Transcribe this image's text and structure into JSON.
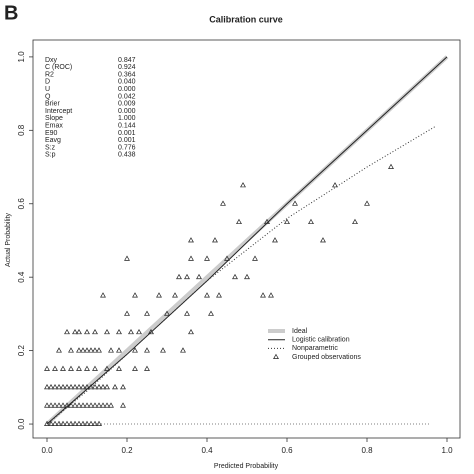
{
  "panel_label": "B",
  "chart_data": {
    "type": "line",
    "title": "Calibration curve",
    "x_label": "Predicted Probability",
    "y_label": "Actual Probability",
    "xlim": [
      -0.035,
      1.0325
    ],
    "ylim": [
      -0.038,
      1.046
    ],
    "xticks": [
      {
        "value": 0,
        "label": "0.0"
      },
      {
        "value": 0.2,
        "label": "0.2"
      },
      {
        "value": 0.4,
        "label": "0.4"
      },
      {
        "value": 0.6,
        "label": "0.6"
      },
      {
        "value": 0.8,
        "label": "0.8"
      },
      {
        "value": 1,
        "label": "1.0"
      }
    ],
    "yticks": [
      {
        "value": 0,
        "label": "0.0"
      },
      {
        "value": 0.2,
        "label": "0.2"
      },
      {
        "value": 0.4,
        "label": "0.4"
      },
      {
        "value": 0.6,
        "label": "0.6"
      },
      {
        "value": 0.8,
        "label": "0.8"
      },
      {
        "value": 1,
        "label": "1.0"
      }
    ],
    "stats": [
      [
        "Dxy",
        "0.847"
      ],
      [
        "C (ROC)",
        "0.924"
      ],
      [
        "R2",
        "0.364"
      ],
      [
        "D",
        "0.040"
      ],
      [
        "U",
        "0.000"
      ],
      [
        "Q",
        "0.042"
      ],
      [
        "Brier",
        "0.009"
      ],
      [
        "Intercept",
        "0.000"
      ],
      [
        "Slope",
        "1.000"
      ],
      [
        "Emax",
        "0.144"
      ],
      [
        "E90",
        "0.001"
      ],
      [
        "Eavg",
        "0.001"
      ],
      [
        "S:z",
        "0.776"
      ],
      [
        "S:p",
        "0.438"
      ]
    ],
    "series": [
      {
        "name": "Ideal",
        "color": "#cccccc",
        "style": "thick",
        "x": [
          0,
          1
        ],
        "values": [
          0,
          1
        ]
      },
      {
        "name": "Logistic calibration",
        "color": "#222222",
        "style": "solid",
        "x": [
          0,
          0.2,
          0.4,
          0.6,
          0.8,
          1
        ],
        "values": [
          0,
          0.19,
          0.39,
          0.6,
          0.8,
          1
        ]
      },
      {
        "name": "Nonparametric",
        "color": "#333333",
        "style": "dotted",
        "x": [
          0,
          0.1,
          0.2,
          0.4,
          0.6,
          0.8,
          0.97
        ],
        "values": [
          0,
          0.09,
          0.19,
          0.39,
          0.56,
          0.7,
          0.81
        ]
      },
      {
        "name": "Grouped observations",
        "color": "#222222",
        "style": "triangle",
        "x": [
          0,
          0.01,
          0.02,
          0.03,
          0.04,
          0.05,
          0.06,
          0.07,
          0.08,
          0.09,
          0.1,
          0.11,
          0.12,
          0.13,
          0,
          0.01,
          0.02,
          0.03,
          0.04,
          0.05,
          0.06,
          0.07,
          0.08,
          0.09,
          0.1,
          0.11,
          0.12,
          0.13,
          0.14,
          0.15,
          0.16,
          0.19,
          0,
          0.01,
          0.02,
          0.03,
          0.04,
          0.05,
          0.06,
          0.07,
          0.08,
          0.09,
          0.1,
          0.11,
          0.12,
          0.13,
          0.14,
          0.15,
          0.17,
          0.19,
          0,
          0.02,
          0.04,
          0.06,
          0.08,
          0.1,
          0.12,
          0.15,
          0.18,
          0.22,
          0.25,
          0.03,
          0.06,
          0.08,
          0.09,
          0.1,
          0.11,
          0.12,
          0.13,
          0.16,
          0.18,
          0.22,
          0.25,
          0.29,
          0.34,
          0.05,
          0.07,
          0.08,
          0.1,
          0.12,
          0.15,
          0.18,
          0.21,
          0.23,
          0.26,
          0.36,
          0.14,
          0.2,
          0.2,
          0.22,
          0.25,
          0.28,
          0.3,
          0.32,
          0.33,
          0.35,
          0.35,
          0.36,
          0.36,
          0.38,
          0.4,
          0.4,
          0.41,
          0.42,
          0.43,
          0.44,
          0.45,
          0.47,
          0.48,
          0.49,
          0.5,
          0.52,
          0.54,
          0.55,
          0.56,
          0.57,
          0.6,
          0.62,
          0.66,
          0.69,
          0.72,
          0.77,
          0.8,
          0.86
        ],
        "values": [
          0,
          0,
          0,
          0,
          0,
          0,
          0,
          0,
          0,
          0,
          0,
          0,
          0,
          0,
          0.05,
          0.05,
          0.05,
          0.05,
          0.05,
          0.05,
          0.05,
          0.05,
          0.05,
          0.05,
          0.05,
          0.05,
          0.05,
          0.05,
          0.05,
          0.05,
          0.05,
          0.05,
          0.1,
          0.1,
          0.1,
          0.1,
          0.1,
          0.1,
          0.1,
          0.1,
          0.1,
          0.1,
          0.1,
          0.1,
          0.1,
          0.1,
          0.1,
          0.1,
          0.1,
          0.1,
          0.15,
          0.15,
          0.15,
          0.15,
          0.15,
          0.15,
          0.15,
          0.15,
          0.15,
          0.15,
          0.15,
          0.2,
          0.2,
          0.2,
          0.2,
          0.2,
          0.2,
          0.2,
          0.2,
          0.2,
          0.2,
          0.2,
          0.2,
          0.2,
          0.2,
          0.25,
          0.25,
          0.25,
          0.25,
          0.25,
          0.25,
          0.25,
          0.25,
          0.25,
          0.25,
          0.25,
          0.35,
          0.45,
          0.3,
          0.35,
          0.3,
          0.35,
          0.3,
          0.35,
          0.4,
          0.3,
          0.4,
          0.45,
          0.5,
          0.4,
          0.35,
          0.45,
          0.3,
          0.5,
          0.35,
          0.6,
          0.45,
          0.4,
          0.55,
          0.65,
          0.4,
          0.45,
          0.35,
          0.55,
          0.35,
          0.5,
          0.55,
          0.6,
          0.55,
          0.5,
          0.65,
          0.55,
          0.6,
          0.7
        ]
      }
    ]
  }
}
